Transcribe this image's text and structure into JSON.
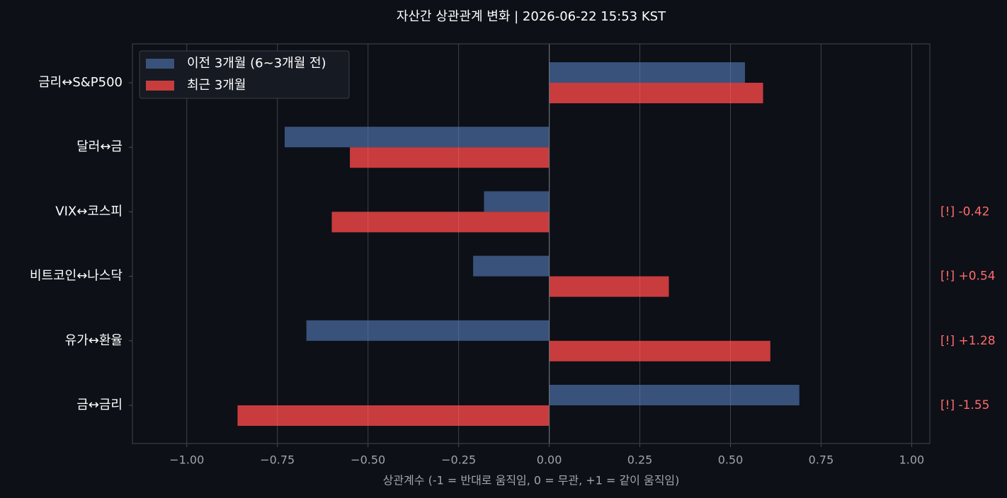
{
  "chart_data": {
    "type": "barh",
    "title": "자산간 상관관계 변화  |  2026-06-22 15:53 KST",
    "x_label": "상관계수 (-1 = 반대로 움직임, 0 = 무관, +1 = 같이 움직임)",
    "categories": [
      "금리↔S&P500",
      "달러↔금",
      "VIX↔코스피",
      "비트코인↔나스닥",
      "유가↔환율",
      "금↔금리"
    ],
    "series": [
      {
        "name": "이전 3개월 (6~3개월 전)",
        "color": "#39527c",
        "values": [
          0.54,
          -0.73,
          -0.18,
          -0.21,
          -0.67,
          0.69
        ]
      },
      {
        "name": "최근 3개월",
        "color": "#c83c3d",
        "values": [
          0.59,
          -0.55,
          -0.6,
          0.33,
          0.61,
          -0.86
        ]
      }
    ],
    "annotations": [
      null,
      null,
      "[!] -0.42",
      "[!] +0.54",
      "[!] +1.28",
      "[!] -1.55"
    ],
    "annotation_color": "#ff6b6b",
    "xlim": [
      -1.15,
      1.05
    ],
    "xticks": [
      {
        "value": -1,
        "label": "−1.00"
      },
      {
        "value": -0.75,
        "label": "−0.75"
      },
      {
        "value": -0.5,
        "label": "−0.50"
      },
      {
        "value": -0.25,
        "label": "−0.25"
      },
      {
        "value": 0,
        "label": "0.00"
      },
      {
        "value": 0.25,
        "label": "0.25"
      },
      {
        "value": 0.5,
        "label": "0.50"
      },
      {
        "value": 0.75,
        "label": "0.75"
      },
      {
        "value": 1,
        "label": "1.00"
      }
    ],
    "grid": true,
    "legend": "upper left"
  }
}
